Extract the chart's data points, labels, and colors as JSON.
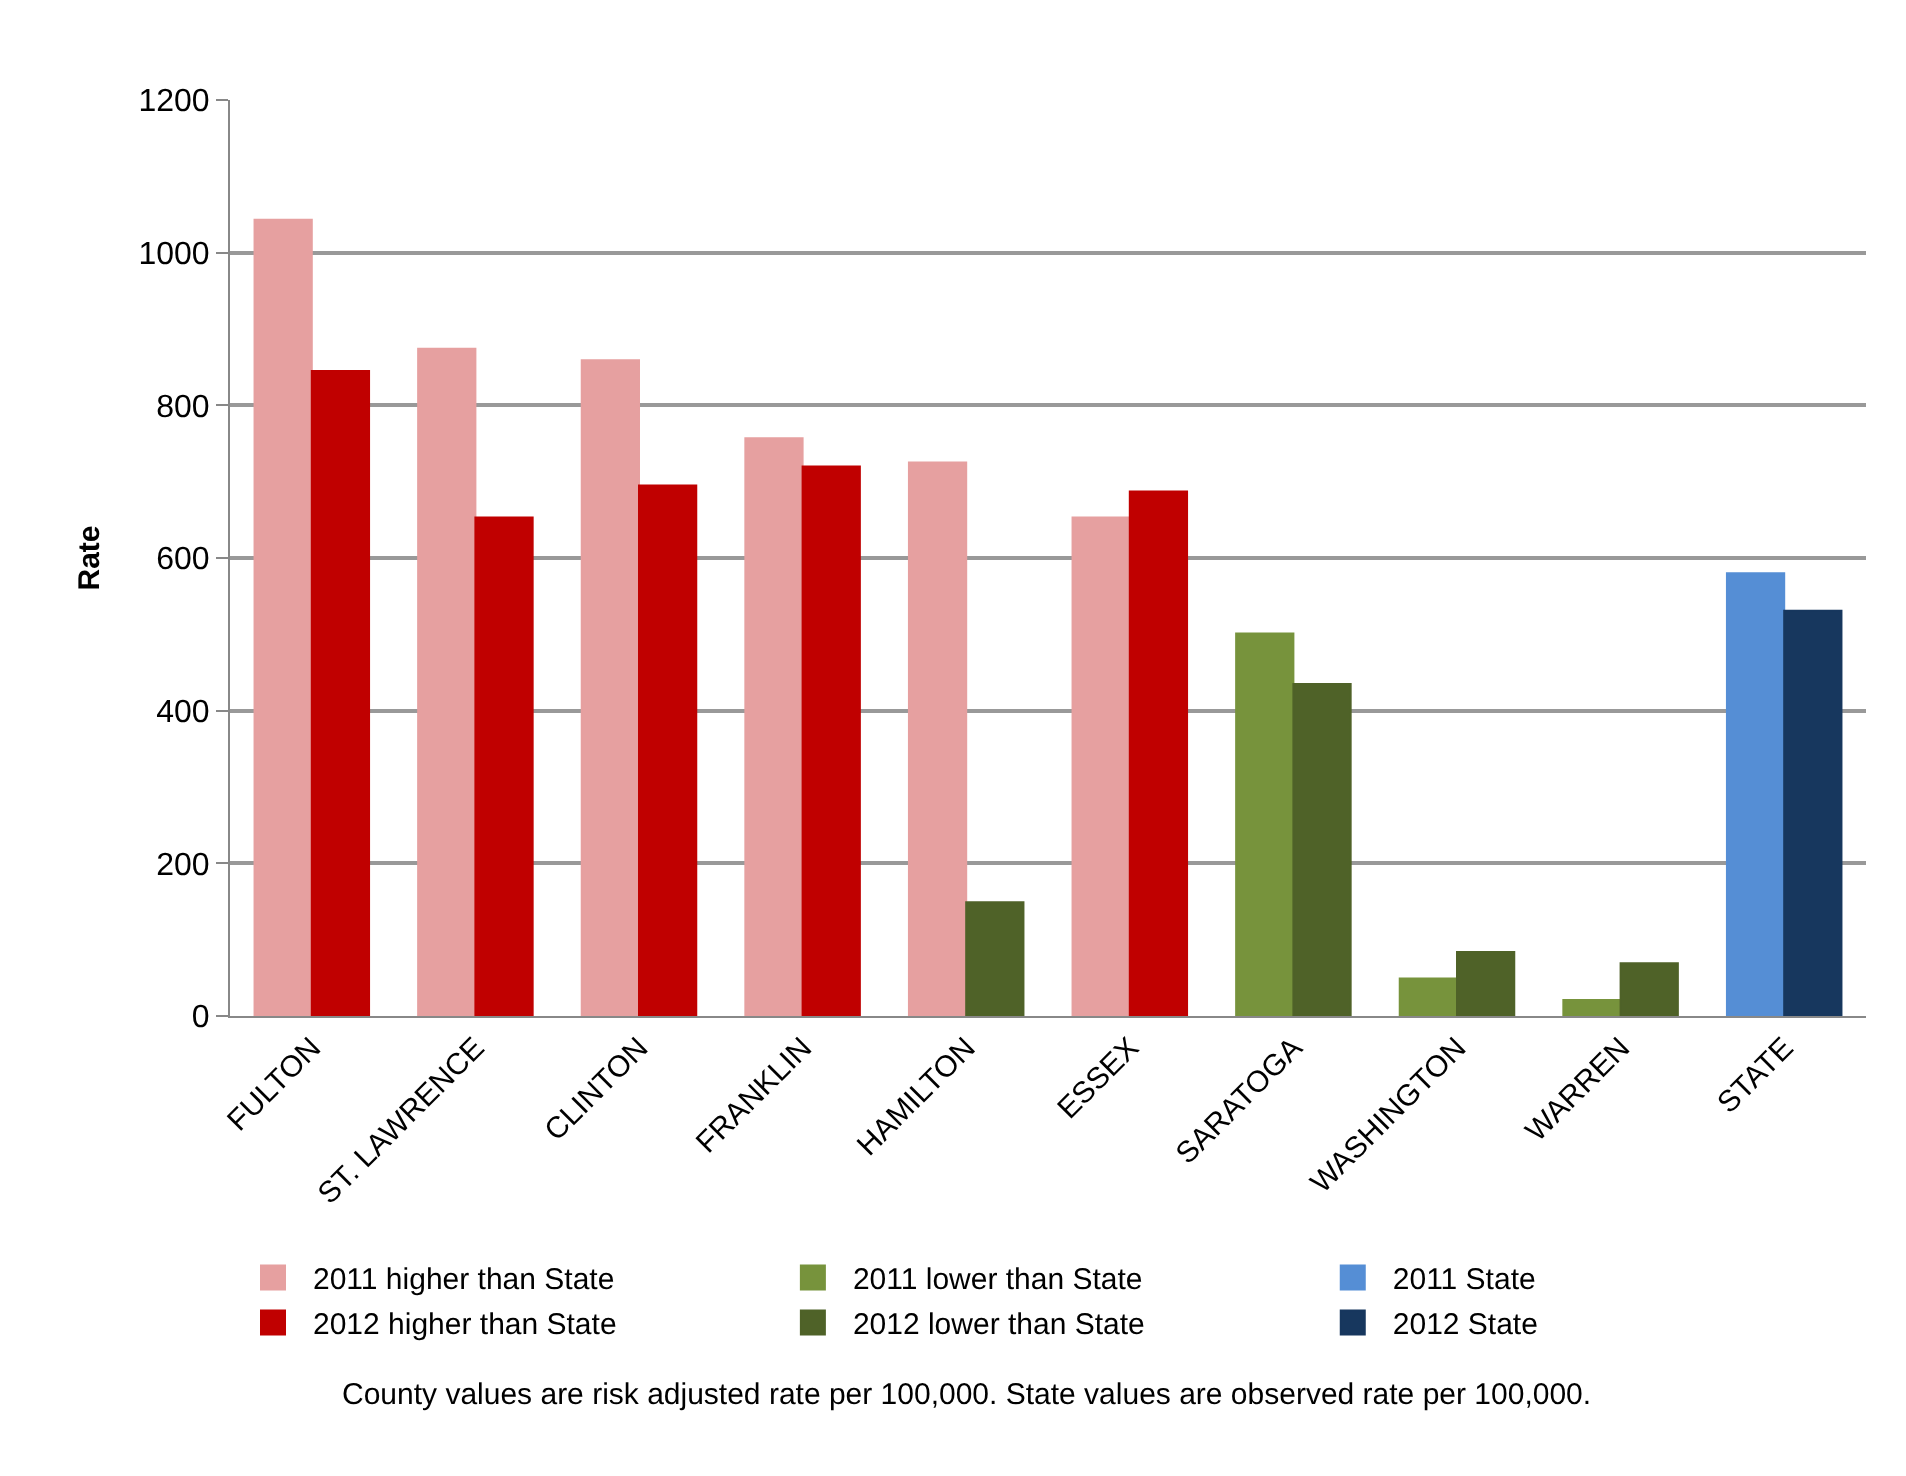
{
  "chart_data": {
    "type": "bar",
    "ylabel": "Rate",
    "categories": [
      "FULTON",
      "ST. LAWRENCE",
      "CLINTON",
      "FRANKLIN",
      "HAMILTON",
      "ESSEX",
      "SARATOGA",
      "WASHINGTON",
      "WARREN",
      "STATE"
    ],
    "series": [
      {
        "name": "2011 higher than State",
        "color": "#e6a0a0",
        "values": [
          1043,
          874,
          859,
          757,
          725,
          653,
          null,
          null,
          null,
          null
        ]
      },
      {
        "name": "2011 lower than State",
        "color": "#77933c",
        "values": [
          null,
          null,
          null,
          null,
          null,
          null,
          501,
          49,
          21,
          null
        ]
      },
      {
        "name": "2011 State",
        "color": "#558ed5",
        "values": [
          null,
          null,
          null,
          null,
          null,
          null,
          null,
          null,
          null,
          580
        ]
      },
      {
        "name": "2012 higher than State",
        "color": "#c00000",
        "values": [
          845,
          653,
          695,
          720,
          null,
          687,
          null,
          null,
          null,
          null
        ]
      },
      {
        "name": "2012 lower than State",
        "color": "#4f6228",
        "values": [
          null,
          null,
          null,
          null,
          149,
          null,
          435,
          84,
          69,
          null
        ]
      },
      {
        "name": "2012 State",
        "color": "#17375e",
        "values": [
          null,
          null,
          null,
          null,
          null,
          null,
          null,
          null,
          null,
          531
        ]
      }
    ],
    "ylim": [
      0,
      1200
    ],
    "yticks": [
      0,
      200,
      400,
      600,
      800,
      1000,
      1200
    ],
    "grid": "y",
    "legend": "bottom",
    "annotations": [
      "County values are risk adjusted rate per 100,000. State values are observed rate per 100,000."
    ]
  }
}
